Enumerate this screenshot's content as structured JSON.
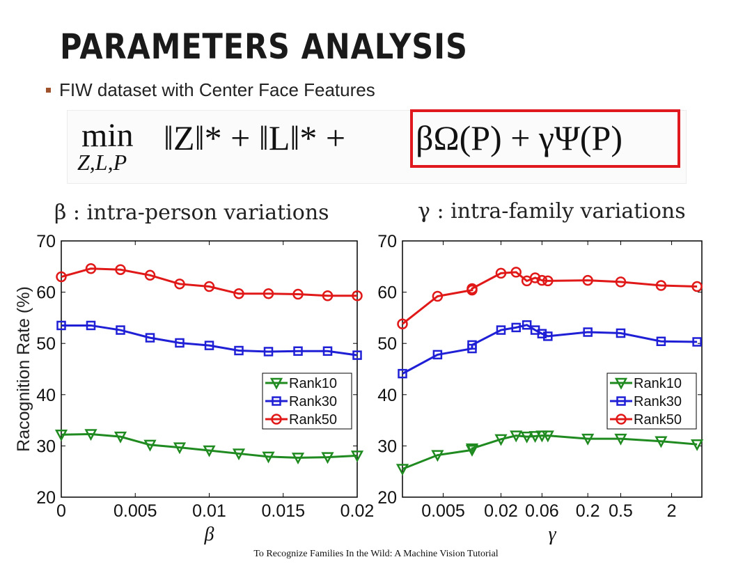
{
  "slide": {
    "title": "PARAMETERS ANALYSIS",
    "bullet": "FIW dataset with Center Face Features",
    "formula": {
      "min": "min",
      "subscript": "Z,L,P",
      "terms": "‖Z‖* + ‖L‖* +",
      "highlighted": "βΩ(P) + γΨ(P)",
      "highlight_color": "#e0191f"
    },
    "footer": "To Recognize Families In the Wild: A Machine Vision Tutorial"
  },
  "chart_data": [
    {
      "type": "line",
      "title": "β : intra-person variations",
      "xlabel": "β",
      "ylabel": "Racognition Rate (%)",
      "ylim": [
        20,
        70
      ],
      "xlim": [
        0,
        0.02
      ],
      "yticks": [
        "20",
        "30",
        "40",
        "50",
        "60",
        "70"
      ],
      "xticks": [
        {
          "label": "0",
          "value": 0
        },
        {
          "label": "0.005",
          "value": 0.005
        },
        {
          "label": "0.01",
          "value": 0.01
        },
        {
          "label": "0.015",
          "value": 0.015
        },
        {
          "label": "0.02",
          "value": 0.02
        }
      ],
      "x": [
        0,
        0.002,
        0.004,
        0.006,
        0.008,
        0.01,
        0.012,
        0.014,
        0.016,
        0.018,
        0.02
      ],
      "series": [
        {
          "name": "Rank10",
          "color": "#1f8a1f",
          "marker": "triangle-down",
          "values": [
            32.2,
            32.3,
            31.8,
            30.2,
            29.7,
            29.1,
            28.5,
            27.9,
            27.7,
            27.8,
            28.1
          ]
        },
        {
          "name": "Rank30",
          "color": "#1f1fd6",
          "marker": "square",
          "values": [
            53.5,
            53.5,
            52.6,
            51.1,
            50.1,
            49.6,
            48.6,
            48.4,
            48.5,
            48.5,
            47.7
          ]
        },
        {
          "name": "Rank50",
          "color": "#e01818",
          "marker": "circle",
          "values": [
            63.0,
            64.6,
            64.4,
            63.3,
            61.6,
            61.1,
            59.7,
            59.7,
            59.6,
            59.3,
            59.3
          ]
        }
      ],
      "legend": "lower-right",
      "grid": false
    },
    {
      "type": "line",
      "title": "γ : intra-family variations",
      "xlabel": "γ",
      "ylabel": "",
      "ylim": [
        20,
        70
      ],
      "yticks": [
        "20",
        "30",
        "40",
        "50",
        "60",
        "70"
      ],
      "xticks": [
        {
          "label": "0.005",
          "value": 0.005
        },
        {
          "label": "0.02",
          "value": 0.02
        },
        {
          "label": "0.06",
          "value": 0.06
        },
        {
          "label": "0.2",
          "value": 0.2
        },
        {
          "label": "0.5",
          "value": 0.5
        },
        {
          "label": "2",
          "value": 2
        }
      ],
      "x": [
        0.001,
        0.004,
        0.01,
        0.01,
        0.02,
        0.03,
        0.04,
        0.05,
        0.06,
        0.07,
        0.2,
        0.5,
        1.5,
        4
      ],
      "series": [
        {
          "name": "Rank10",
          "color": "#1f8a1f",
          "marker": "triangle-down",
          "values": [
            25.5,
            28.2,
            29.2,
            29.5,
            31.3,
            32.0,
            31.8,
            31.9,
            32.0,
            32.0,
            31.4,
            31.4,
            30.9,
            30.3
          ]
        },
        {
          "name": "Rank30",
          "color": "#1f1fd6",
          "marker": "square",
          "values": [
            44.1,
            47.8,
            49.0,
            49.7,
            52.6,
            53.1,
            53.6,
            52.6,
            51.9,
            51.4,
            52.2,
            52.0,
            50.4,
            50.3
          ]
        },
        {
          "name": "Rank50",
          "color": "#e01818",
          "marker": "circle",
          "values": [
            53.8,
            59.2,
            60.4,
            60.7,
            63.7,
            63.9,
            62.2,
            62.8,
            62.3,
            62.2,
            62.3,
            62.0,
            61.3,
            61.1
          ]
        }
      ],
      "legend": "lower-right",
      "grid": false
    }
  ]
}
